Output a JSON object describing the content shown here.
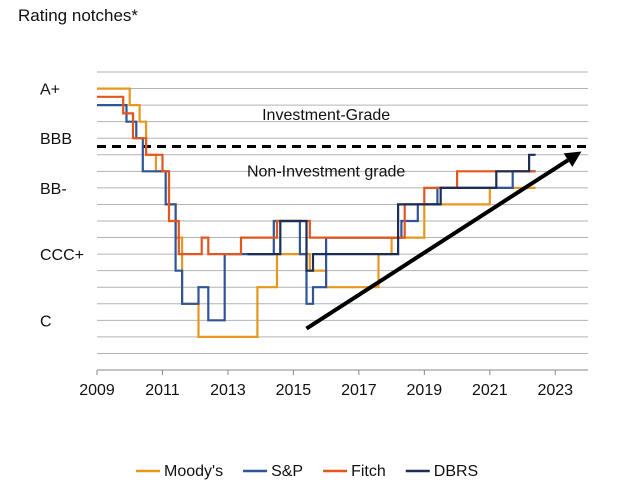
{
  "chart_data": {
    "type": "line",
    "ylabel": "Rating notches*",
    "xlim": [
      2009,
      2024
    ],
    "ylim": [
      -1,
      17
    ],
    "x_ticks": [
      2009,
      2011,
      2013,
      2015,
      2017,
      2019,
      2021,
      2023
    ],
    "y_ticks": [
      {
        "label": "A+",
        "value": 16
      },
      {
        "label": "BBB",
        "value": 13
      },
      {
        "label": "BB-",
        "value": 10
      },
      {
        "label": "CCC+",
        "value": 6
      },
      {
        "label": "C",
        "value": 2
      }
    ],
    "grid": true,
    "threshold": {
      "value": 12.5,
      "style": "dashed"
    },
    "annotations": [
      {
        "text": "Investment-Grade",
        "x": 2016.0,
        "y": 14.1
      },
      {
        "text": "Non-Investment grade",
        "x": 2016.0,
        "y": 10.7
      }
    ],
    "trend_arrow": {
      "from": [
        2015.4,
        1.5
      ],
      "to": [
        2023.8,
        12.2
      ]
    },
    "legend_position": "bottom",
    "series": [
      {
        "name": "Moody's",
        "color": "#E8961E",
        "points": [
          [
            2009.0,
            16
          ],
          [
            2010.0,
            16
          ],
          [
            2010.0,
            15
          ],
          [
            2010.3,
            15
          ],
          [
            2010.3,
            14
          ],
          [
            2010.5,
            14
          ],
          [
            2010.5,
            12
          ],
          [
            2010.8,
            12
          ],
          [
            2010.8,
            11
          ],
          [
            2011.2,
            11
          ],
          [
            2011.2,
            9
          ],
          [
            2011.4,
            9
          ],
          [
            2011.4,
            7
          ],
          [
            2011.6,
            7
          ],
          [
            2011.6,
            3
          ],
          [
            2012.1,
            3
          ],
          [
            2012.1,
            1
          ],
          [
            2013.9,
            1
          ],
          [
            2013.9,
            4
          ],
          [
            2014.5,
            4
          ],
          [
            2014.5,
            6
          ],
          [
            2015.5,
            6
          ],
          [
            2015.5,
            5
          ],
          [
            2016.0,
            5
          ],
          [
            2016.0,
            4
          ],
          [
            2017.0,
            4
          ],
          [
            2017.0,
            4
          ],
          [
            2017.6,
            4
          ],
          [
            2017.6,
            6
          ],
          [
            2018.0,
            6
          ],
          [
            2018.0,
            7
          ],
          [
            2019.0,
            7
          ],
          [
            2019.0,
            9
          ],
          [
            2021.0,
            9
          ],
          [
            2021.0,
            10
          ],
          [
            2022.4,
            10
          ]
        ]
      },
      {
        "name": "S&P",
        "color": "#2E5597",
        "points": [
          [
            2009.0,
            15
          ],
          [
            2009.9,
            15
          ],
          [
            2009.9,
            14
          ],
          [
            2010.2,
            14
          ],
          [
            2010.2,
            13
          ],
          [
            2010.4,
            13
          ],
          [
            2010.4,
            11
          ],
          [
            2011.1,
            11
          ],
          [
            2011.1,
            9
          ],
          [
            2011.4,
            9
          ],
          [
            2011.4,
            5
          ],
          [
            2011.6,
            5
          ],
          [
            2011.6,
            3
          ],
          [
            2012.1,
            3
          ],
          [
            2012.1,
            4
          ],
          [
            2012.4,
            4
          ],
          [
            2012.4,
            2
          ],
          [
            2012.9,
            2
          ],
          [
            2012.9,
            6
          ],
          [
            2013.5,
            6
          ],
          [
            2013.5,
            6
          ],
          [
            2014.4,
            6
          ],
          [
            2014.4,
            8
          ],
          [
            2015.2,
            8
          ],
          [
            2015.2,
            6
          ],
          [
            2015.4,
            6
          ],
          [
            2015.4,
            3
          ],
          [
            2015.6,
            3
          ],
          [
            2015.6,
            4
          ],
          [
            2016.0,
            4
          ],
          [
            2016.0,
            7
          ],
          [
            2018.3,
            7
          ],
          [
            2018.3,
            8
          ],
          [
            2018.8,
            8
          ],
          [
            2018.8,
            9
          ],
          [
            2019.4,
            9
          ],
          [
            2019.4,
            10
          ],
          [
            2020.0,
            10
          ],
          [
            2020.0,
            10
          ],
          [
            2021.7,
            10
          ],
          [
            2021.7,
            11
          ],
          [
            2022.4,
            11
          ]
        ]
      },
      {
        "name": "Fitch",
        "color": "#E2571E",
        "points": [
          [
            2009.0,
            15.5
          ],
          [
            2009.8,
            15.5
          ],
          [
            2009.8,
            14.5
          ],
          [
            2010.1,
            14.5
          ],
          [
            2010.1,
            13
          ],
          [
            2010.5,
            13
          ],
          [
            2010.5,
            12
          ],
          [
            2011.0,
            12
          ],
          [
            2011.0,
            11
          ],
          [
            2011.2,
            11
          ],
          [
            2011.2,
            8
          ],
          [
            2011.5,
            8
          ],
          [
            2011.5,
            6
          ],
          [
            2012.2,
            6
          ],
          [
            2012.2,
            7
          ],
          [
            2012.4,
            7
          ],
          [
            2012.4,
            6
          ],
          [
            2013.4,
            6
          ],
          [
            2013.4,
            7
          ],
          [
            2014.5,
            7
          ],
          [
            2014.5,
            8
          ],
          [
            2015.5,
            8
          ],
          [
            2015.5,
            7
          ],
          [
            2015.9,
            7
          ],
          [
            2015.9,
            7
          ],
          [
            2017.5,
            7
          ],
          [
            2017.5,
            7
          ],
          [
            2018.4,
            7
          ],
          [
            2018.4,
            9
          ],
          [
            2019.0,
            9
          ],
          [
            2019.0,
            10
          ],
          [
            2020.0,
            10
          ],
          [
            2020.0,
            11
          ],
          [
            2022.4,
            11
          ]
        ]
      },
      {
        "name": "DBRS",
        "color": "#1B2F55",
        "points": [
          [
            2013.6,
            6
          ],
          [
            2014.6,
            6
          ],
          [
            2014.6,
            8
          ],
          [
            2015.4,
            8
          ],
          [
            2015.4,
            5
          ],
          [
            2015.6,
            5
          ],
          [
            2015.6,
            6
          ],
          [
            2018.2,
            6
          ],
          [
            2018.2,
            9
          ],
          [
            2019.5,
            9
          ],
          [
            2019.5,
            10
          ],
          [
            2021.2,
            10
          ],
          [
            2021.2,
            11
          ],
          [
            2022.2,
            11
          ],
          [
            2022.2,
            12
          ],
          [
            2022.4,
            12
          ]
        ]
      }
    ]
  }
}
